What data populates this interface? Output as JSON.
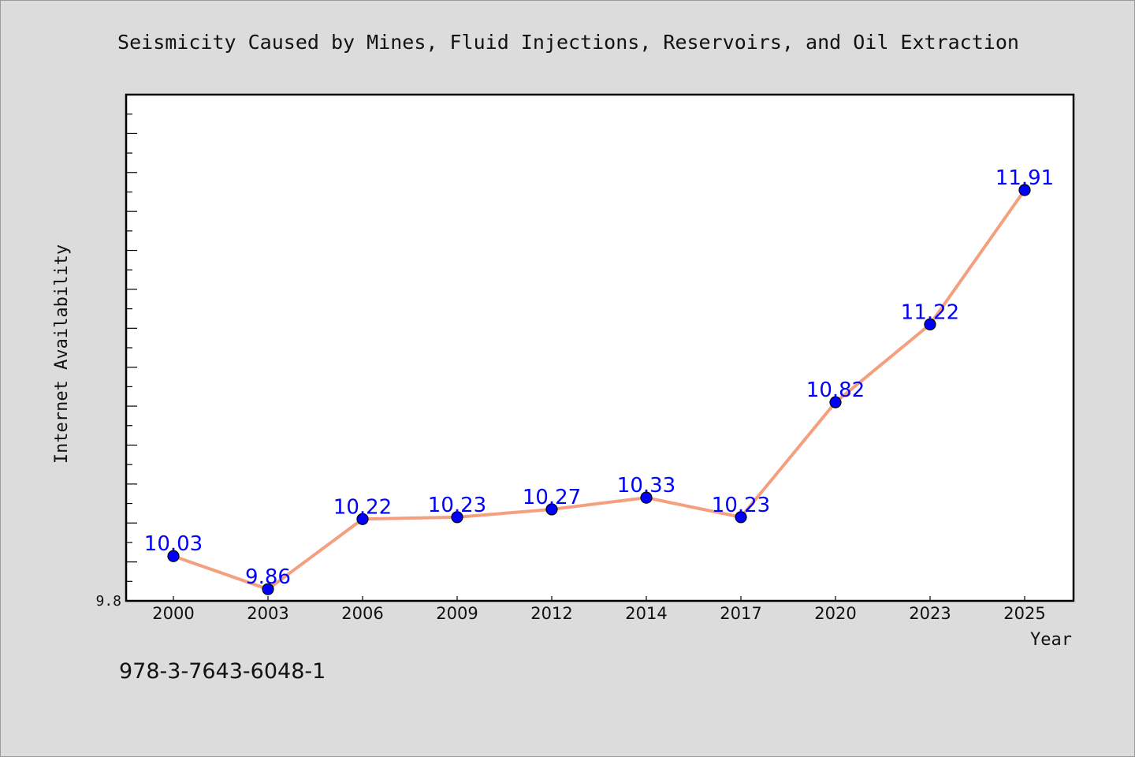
{
  "footer": {
    "code": "978-3-7643-6048-1"
  },
  "colors": {
    "background": "#dcdcdc",
    "plot_background": "#ffffff",
    "line": "#f4a07e",
    "marker": "#0000ff",
    "data_label": "#0000ff",
    "text": "#111111"
  },
  "chart_data": {
    "type": "line",
    "title": "Seismicity Caused by Mines, Fluid Injections, Reservoirs, and Oil Extraction",
    "xlabel": "Year",
    "ylabel": "Internet Availability",
    "categories": [
      "2000",
      "2003",
      "2006",
      "2009",
      "2012",
      "2014",
      "2017",
      "2020",
      "2023",
      "2025"
    ],
    "series": [
      {
        "values": [
          10.03,
          9.86,
          10.22,
          10.23,
          10.27,
          10.33,
          10.23,
          10.82,
          11.22,
          11.91
        ],
        "labels": [
          "10.03",
          "9.86",
          "10.22",
          "10.23",
          "10.27",
          "10.33",
          "10.23",
          "10.82",
          "11.22",
          "11.91"
        ]
      }
    ],
    "ylim": [
      9.8,
      12.4
    ],
    "y_tick_labels": [
      "9.8"
    ],
    "grid": false,
    "legend": "none"
  }
}
